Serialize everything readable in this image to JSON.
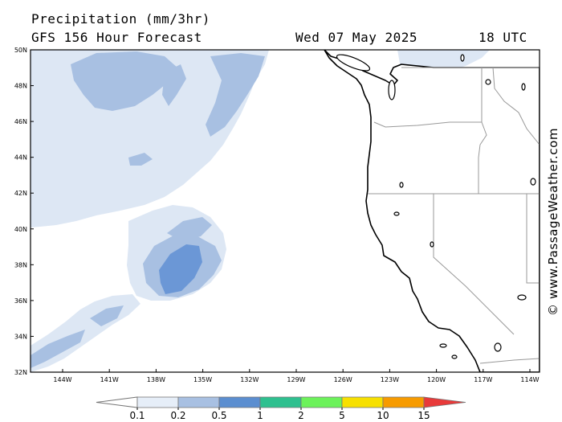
{
  "header": {
    "title": "Precipitation (mm/3hr)",
    "subtitle": "GFS 156 Hour Forecast",
    "date": "Wed 07 May 2025",
    "time": "18 UTC"
  },
  "watermark": "© www.PassageWeather.com",
  "axes": {
    "lat_labels": [
      "50N",
      "48N",
      "46N",
      "44N",
      "42N",
      "40N",
      "38N",
      "36N",
      "34N",
      "32N"
    ],
    "lon_labels": [
      "144W",
      "141W",
      "138W",
      "135W",
      "132W",
      "129W",
      "126W",
      "123W",
      "120W",
      "117W",
      "114W"
    ]
  },
  "colorbar": {
    "labels": [
      "0.1",
      "0.2",
      "0.5",
      "1",
      "2",
      "5",
      "10",
      "15"
    ],
    "colors": [
      "#e6eef8",
      "#a8c0e2",
      "#5b8ed0",
      "#2ec08f",
      "#6cf25a",
      "#f7e000",
      "#f79b00",
      "#e83a3a"
    ]
  },
  "colors": {
    "ocean": "#ffffff",
    "land": "#ffffff",
    "precip_light": "#dde7f4",
    "precip_mid": "#a8c0e2",
    "precip_heavy": "#6b97d6",
    "coast": "#000000",
    "border": "#999999"
  }
}
